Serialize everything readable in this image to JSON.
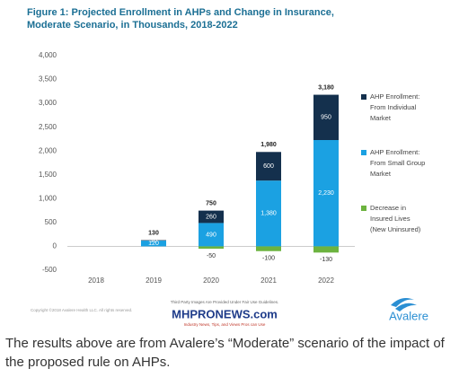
{
  "chart_data": {
    "type": "stacked-bar",
    "title": "Figure 1: Projected Enrollment in AHPs and Change in Insurance, Moderate Scenario, in Thousands, 2018-2022",
    "categories": [
      "2018",
      "2019",
      "2020",
      "2021",
      "2022"
    ],
    "series": [
      {
        "name": "AHP Enrollment: From Individual Market",
        "color": "#14304d",
        "values": [
          null,
          10,
          260,
          600,
          950
        ]
      },
      {
        "name": "AHP Enrollment: From Small Group Market",
        "color": "#1ba1e2",
        "values": [
          null,
          120,
          490,
          1380,
          2230
        ],
        "value_labels": [
          null,
          "120",
          "490",
          "1,380",
          "2,230"
        ]
      },
      {
        "name": "Decrease in Insured Lives (New Uninsured)",
        "color": "#6cb33f",
        "values": [
          null,
          null,
          -50,
          -100,
          -130
        ]
      }
    ],
    "totals": [
      null,
      130,
      750,
      1980,
      3180
    ],
    "totals_labels": [
      null,
      "130",
      "750",
      "1,980",
      "3,180"
    ],
    "ylim": [
      -500,
      4000
    ],
    "yticks": [
      -500,
      0,
      500,
      {
        "value": 1000,
        "label": "1,000"
      },
      {
        "value": 1500,
        "label": "1,500"
      },
      {
        "value": 2000,
        "label": "2,000"
      },
      {
        "value": 2500,
        "label": "2,500"
      },
      {
        "value": 3000,
        "label": "3,000"
      },
      {
        "value": 3500,
        "label": "3,500"
      },
      {
        "value": 4000,
        "label": "4,000"
      }
    ],
    "grid": false,
    "legend": "right",
    "copyright": "Copyright ©2018 Avalere Health LLC. All rights reserved.",
    "logo": "Avalere"
  },
  "watermark": {
    "notice": "Third Party Images Are Provided Under Fair Use Guidelines.",
    "brand": "MHPRONEWS.com",
    "tagline": "Industry News, Tips, and Views Pros can Use"
  },
  "caption": "The results above are from Avalere’s “Moderate” scenario of the impact of the proposed rule on AHPs."
}
